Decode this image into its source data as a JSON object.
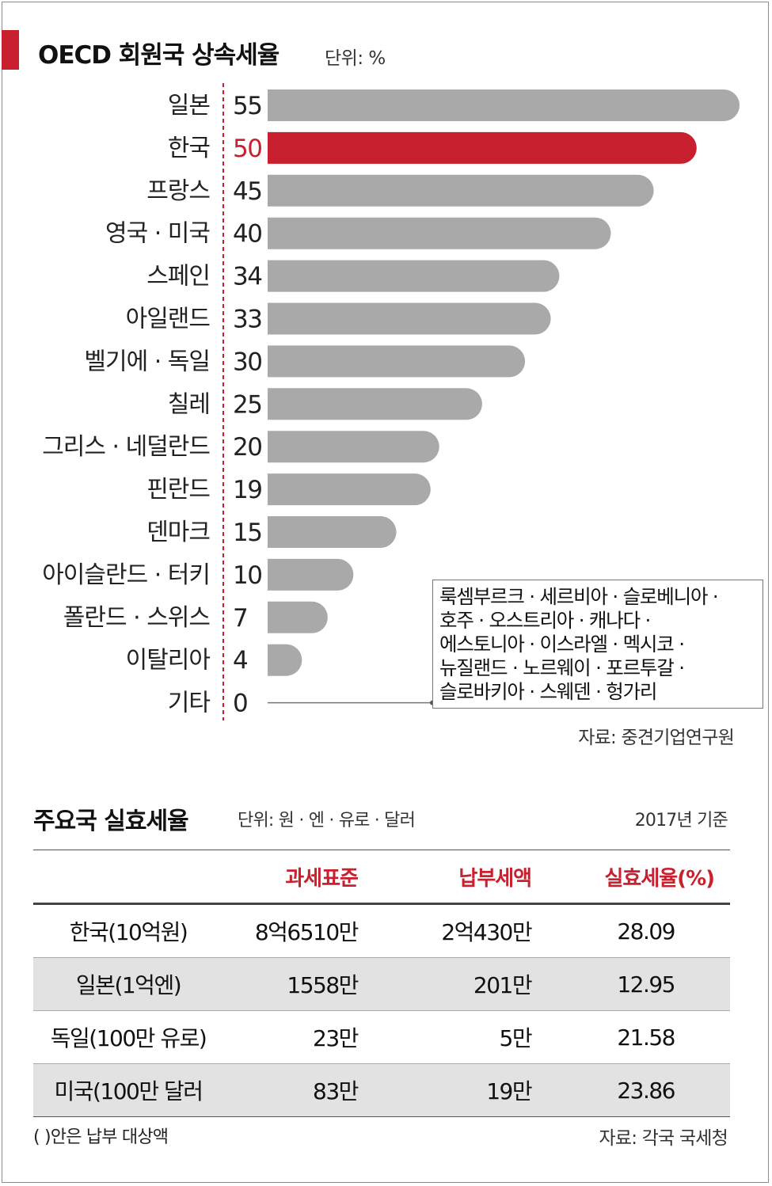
{
  "chart_data": {
    "type": "bar",
    "orientation": "horizontal",
    "title": "OECD 회원국 상속세율",
    "unit": "단위: %",
    "categories": [
      "일본",
      "한국",
      "프랑스",
      "영국 · 미국",
      "스페인",
      "아일랜드",
      "벨기에 · 독일",
      "칠레",
      "그리스 · 네덜란드",
      "핀란드",
      "덴마크",
      "아이슬란드 · 터키",
      "폴란드 · 스위스",
      "이탈리아",
      "기타"
    ],
    "values": [
      55,
      50,
      45,
      40,
      34,
      33,
      30,
      25,
      20,
      19,
      15,
      10,
      7,
      4,
      0
    ],
    "highlight_category": "한국",
    "colors": {
      "bar": "#a9a9aa",
      "highlight": "#c8202e",
      "divider": "#c8202e"
    },
    "xlim": [
      0,
      55
    ],
    "annotation_lines": [
      "룩셈부르크 · 세르비아 · 슬로베니아 ·",
      "호주 · 오스트리아 · 캐나다 ·",
      "에스토니아 · 이스라엘 · 멕시코 ·",
      "뉴질랜드 · 노르웨이 · 포르투갈 ·",
      "슬로바키아 · 스웨덴 · 헝가리"
    ],
    "source": "자료: 중견기업연구원"
  },
  "table": {
    "title": "주요국 실효세율",
    "unit": "단위: 원 · 엔 · 유로 · 달러",
    "basis": "2017년 기준",
    "headers": [
      "",
      "과세표준",
      "납부세액",
      "실효세율(%)"
    ],
    "rows": [
      [
        "한국(10억원)",
        "8억6510만",
        "2억430만",
        "28.09"
      ],
      [
        "일본(1억엔)",
        "1558만",
        "201만",
        "12.95"
      ],
      [
        "독일(100만 유로)",
        "23만",
        "5만",
        "21.58"
      ],
      [
        "미국(100만 달러",
        "83만",
        "19만",
        "23.86"
      ]
    ],
    "footnote": "( )안은 납부 대상액",
    "source": "자료: 각국 국세청"
  }
}
